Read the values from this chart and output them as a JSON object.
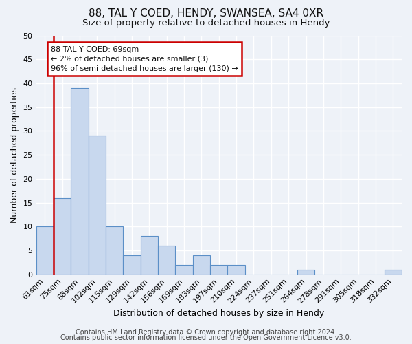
{
  "title": "88, TAL Y COED, HENDY, SWANSEA, SA4 0XR",
  "subtitle": "Size of property relative to detached houses in Hendy",
  "xlabel": "Distribution of detached houses by size in Hendy",
  "ylabel": "Number of detached properties",
  "bar_labels": [
    "61sqm",
    "75sqm",
    "88sqm",
    "102sqm",
    "115sqm",
    "129sqm",
    "142sqm",
    "156sqm",
    "169sqm",
    "183sqm",
    "197sqm",
    "210sqm",
    "224sqm",
    "237sqm",
    "251sqm",
    "264sqm",
    "278sqm",
    "291sqm",
    "305sqm",
    "318sqm",
    "332sqm"
  ],
  "bar_values": [
    10,
    16,
    39,
    29,
    10,
    4,
    8,
    6,
    2,
    4,
    2,
    2,
    0,
    0,
    0,
    1,
    0,
    0,
    0,
    0,
    1
  ],
  "bar_color": "#c8d8ee",
  "bar_edge_color": "#5b8fc7",
  "ylim": [
    0,
    50
  ],
  "yticks": [
    0,
    5,
    10,
    15,
    20,
    25,
    30,
    35,
    40,
    45,
    50
  ],
  "annotation_box_text": "88 TAL Y COED: 69sqm\n← 2% of detached houses are smaller (3)\n96% of semi-detached houses are larger (130) →",
  "annotation_box_color": "#ffffff",
  "annotation_box_edge_color": "#cc0000",
  "vline_color": "#cc0000",
  "vline_x_index": 1,
  "footer_line1": "Contains HM Land Registry data © Crown copyright and database right 2024.",
  "footer_line2": "Contains public sector information licensed under the Open Government Licence v3.0.",
  "background_color": "#eef2f8",
  "grid_color": "#ffffff",
  "title_fontsize": 11,
  "subtitle_fontsize": 9.5,
  "label_fontsize": 9,
  "tick_fontsize": 8,
  "footer_fontsize": 7,
  "annotation_fontsize": 8
}
